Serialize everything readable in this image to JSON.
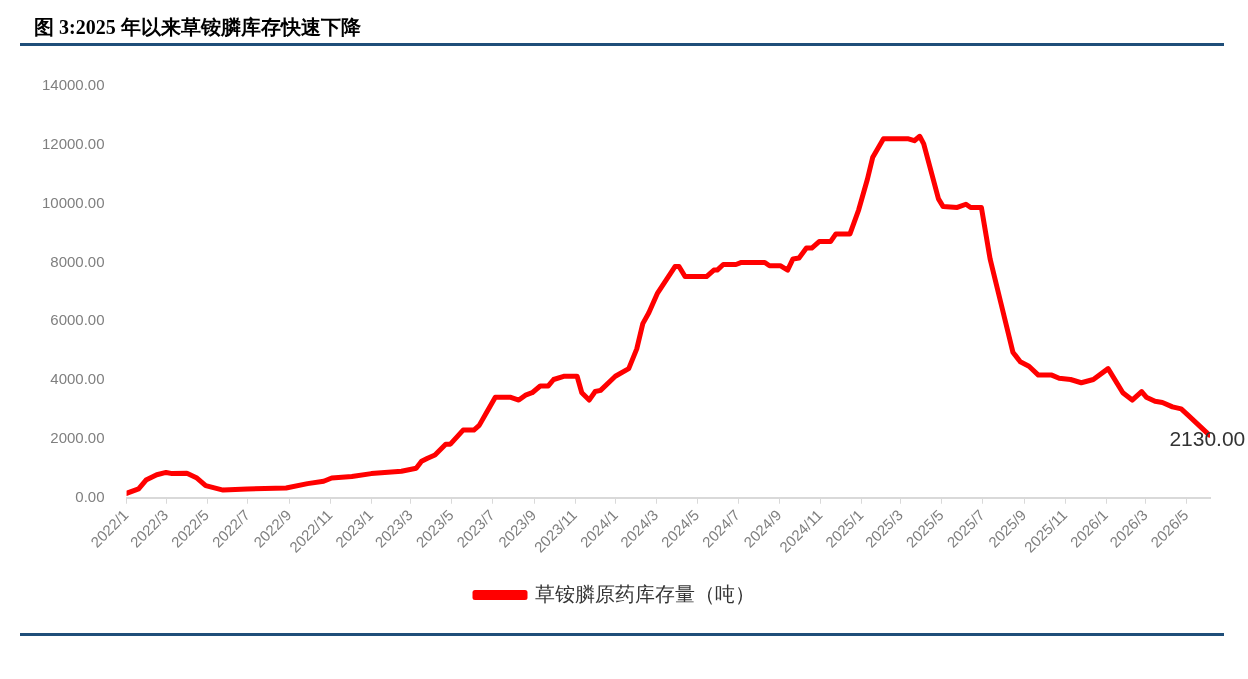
{
  "chart_data": {
    "type": "line",
    "title": "图 3:2025 年以来草铵膦库存快速下降",
    "x": [
      "2022-01-01",
      "2022-01-19",
      "2022-01-30",
      "2022-02-15",
      "2022-03-01",
      "2022-03-10",
      "2022-04-01",
      "2022-04-16",
      "2022-04-29",
      "2022-05-25",
      "2022-06-30",
      "2022-08-27",
      "2022-09-28",
      "2022-10-22",
      "2022-11-03",
      "2022-12-03",
      "2023-01-01",
      "2023-02-15",
      "2023-03-09",
      "2023-03-17",
      "2023-03-26",
      "2023-04-06",
      "2023-04-22",
      "2023-04-29",
      "2023-05-18",
      "2023-06-03",
      "2023-06-11",
      "2023-06-23",
      "2023-07-05",
      "2023-07-27",
      "2023-08-09",
      "2023-08-20",
      "2023-08-29",
      "2023-09-10",
      "2023-09-22",
      "2023-09-30",
      "2023-10-15",
      "2023-11-04",
      "2023-11-11",
      "2023-11-22",
      "2023-12-01",
      "2023-12-09",
      "2023-12-31",
      "2024-01-20",
      "2024-02-01",
      "2024-02-10",
      "2024-02-19",
      "2024-03-03",
      "2024-03-29",
      "2024-04-04",
      "2024-04-13",
      "2024-05-15",
      "2024-05-26",
      "2024-05-31",
      "2024-06-09",
      "2024-06-28",
      "2024-07-06",
      "2024-08-10",
      "2024-08-17",
      "2024-09-02",
      "2024-09-13",
      "2024-09-21",
      "2024-09-30",
      "2024-10-11",
      "2024-10-19",
      "2024-10-30",
      "2024-11-16",
      "2024-11-24",
      "2024-12-15",
      "2024-12-28",
      "2025-01-10",
      "2025-01-18",
      "2025-02-03",
      "2025-03-11",
      "2025-03-21",
      "2025-03-29",
      "2025-04-04",
      "2025-04-26",
      "2025-05-03",
      "2025-05-24",
      "2025-06-06",
      "2025-06-13",
      "2025-06-29",
      "2025-07-12",
      "2025-07-28",
      "2025-08-15",
      "2025-08-26",
      "2025-09-08",
      "2025-09-22",
      "2025-10-12",
      "2025-10-23",
      "2025-11-09",
      "2025-11-25",
      "2025-12-13",
      "2026-01-04",
      "2026-01-26",
      "2026-02-09",
      "2026-02-23",
      "2026-03-02",
      "2026-03-15",
      "2026-03-26",
      "2026-04-10",
      "2026-04-23",
      "2026-05-04",
      "2026-06-04"
    ],
    "series": [
      {
        "name": "草铵膦原药库存量（吨）",
        "color": "#ff0000",
        "values": [
          150,
          300,
          600,
          780,
          860,
          820,
          830,
          670,
          410,
          260,
          300,
          330,
          480,
          560,
          670,
          720,
          820,
          900,
          1000,
          1240,
          1340,
          1450,
          1820,
          1820,
          2300,
          2300,
          2460,
          2940,
          3420,
          3420,
          3320,
          3500,
          3570,
          3800,
          3800,
          4020,
          4130,
          4130,
          3570,
          3320,
          3610,
          3650,
          4130,
          4390,
          5060,
          5920,
          6290,
          6960,
          7860,
          7860,
          7520,
          7520,
          7740,
          7740,
          7930,
          7930,
          8000,
          8000,
          7890,
          7890,
          7740,
          8120,
          8150,
          8490,
          8490,
          8710,
          8710,
          8970,
          8970,
          9790,
          10830,
          11580,
          12210,
          12210,
          12140,
          12290,
          12030,
          10160,
          9900,
          9870,
          9980,
          9870,
          9870,
          8120,
          6630,
          4950,
          4620,
          4470,
          4170,
          4170,
          4060,
          4020,
          3910,
          4020,
          4390,
          3570,
          3320,
          3610,
          3420,
          3280,
          3240,
          3090,
          3020,
          2790,
          2130
        ],
        "value_labels": [
          null,
          null,
          null,
          null,
          null,
          null,
          null,
          null,
          null,
          null,
          null,
          null,
          null,
          null,
          null,
          null,
          null,
          null,
          null,
          null,
          null,
          null,
          null,
          null,
          null,
          null,
          null,
          null,
          null,
          null,
          null,
          null,
          null,
          null,
          null,
          null,
          null,
          null,
          null,
          null,
          null,
          null,
          null,
          null,
          null,
          null,
          null,
          null,
          null,
          null,
          null,
          null,
          null,
          null,
          null,
          null,
          null,
          null,
          null,
          null,
          null,
          null,
          null,
          null,
          null,
          null,
          null,
          null,
          null,
          null,
          null,
          null,
          null,
          null,
          null,
          null,
          null,
          null,
          null,
          null,
          null,
          null,
          null,
          null,
          null,
          null,
          null,
          null,
          null,
          null,
          null,
          null,
          null,
          null,
          null,
          null,
          null,
          null,
          null,
          null,
          null,
          null,
          null,
          null,
          "2130.00"
        ]
      }
    ],
    "xlim": [
      "2022-01-01",
      "2026-06-05"
    ],
    "xticks": [
      {
        "value": "2022-01-01",
        "label": "2022/1"
      },
      {
        "value": "2022-03-01",
        "label": "2022/3"
      },
      {
        "value": "2022-05-01",
        "label": "2022/5"
      },
      {
        "value": "2022-07-01",
        "label": "2022/7"
      },
      {
        "value": "2022-09-01",
        "label": "2022/9"
      },
      {
        "value": "2022-11-01",
        "label": "2022/11"
      },
      {
        "value": "2023-01-01",
        "label": "2023/1"
      },
      {
        "value": "2023-03-01",
        "label": "2023/3"
      },
      {
        "value": "2023-05-01",
        "label": "2023/5"
      },
      {
        "value": "2023-07-01",
        "label": "2023/7"
      },
      {
        "value": "2023-09-01",
        "label": "2023/9"
      },
      {
        "value": "2023-11-01",
        "label": "2023/11"
      },
      {
        "value": "2024-01-01",
        "label": "2024/1"
      },
      {
        "value": "2024-03-01",
        "label": "2024/3"
      },
      {
        "value": "2024-05-01",
        "label": "2024/5"
      },
      {
        "value": "2024-07-01",
        "label": "2024/7"
      },
      {
        "value": "2024-09-01",
        "label": "2024/9"
      },
      {
        "value": "2024-11-01",
        "label": "2024/11"
      },
      {
        "value": "2025-01-01",
        "label": "2025/1"
      },
      {
        "value": "2025-03-01",
        "label": "2025/3"
      },
      {
        "value": "2025-05-01",
        "label": "2025/5"
      },
      {
        "value": "2025-07-01",
        "label": "2025/7"
      },
      {
        "value": "2025-09-01",
        "label": "2025/9"
      },
      {
        "value": "2025-11-01",
        "label": "2025/11"
      },
      {
        "value": "2026-01-01",
        "label": "2026/1"
      },
      {
        "value": "2026-03-01",
        "label": "2026/3"
      },
      {
        "value": "2026-05-01",
        "label": "2026/5"
      }
    ],
    "ylim": [
      0,
      14000
    ],
    "yticks": [
      {
        "value": 0,
        "label": "0.00"
      },
      {
        "value": 2000,
        "label": "2000.00"
      },
      {
        "value": 4000,
        "label": "4000.00"
      },
      {
        "value": 6000,
        "label": "6000.00"
      },
      {
        "value": 8000,
        "label": "8000.00"
      },
      {
        "value": 10000,
        "label": "10000.00"
      },
      {
        "value": 12000,
        "label": "12000.00"
      },
      {
        "value": 14000,
        "label": "14000.00"
      }
    ],
    "grid": false,
    "legend": "bottom",
    "marker": "none",
    "line_style": "solid"
  }
}
